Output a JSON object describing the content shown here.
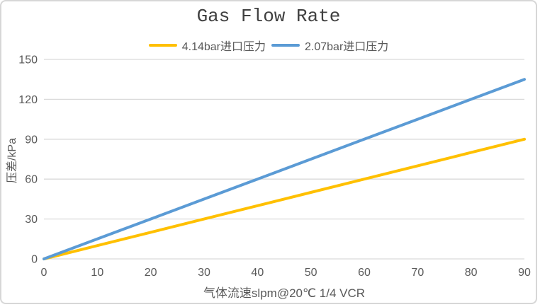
{
  "panel": {
    "background": "#FFFFFF",
    "border_color": "#D7D7D7"
  },
  "chart_data": {
    "type": "line",
    "title": "Gas Flow Rate",
    "xlabel": "气体流速slpm@20℃ 1/4 VCR",
    "ylabel": "压差/kPa",
    "x": [
      0,
      10,
      20,
      30,
      40,
      50,
      60,
      70,
      80,
      90
    ],
    "series": [
      {
        "name": "4.14bar进口压力",
        "color": "#FFC000",
        "values": [
          0,
          10,
          20,
          30,
          40,
          50,
          60,
          70,
          80,
          90
        ]
      },
      {
        "name": "2.07bar进口压力",
        "color": "#5B9BD5",
        "values": [
          0,
          15,
          30,
          45,
          60,
          75,
          90,
          105,
          120,
          135
        ]
      }
    ],
    "xlim": [
      0,
      90
    ],
    "ylim": [
      0,
      150
    ],
    "xticks": [
      0,
      10,
      20,
      30,
      40,
      50,
      60,
      70,
      80,
      90
    ],
    "yticks": [
      0,
      30,
      60,
      90,
      120,
      150
    ],
    "grid": "horizontal",
    "legend_position": "top",
    "gridline_color": "#D9D9D9",
    "text_color": "#595959",
    "title_color": "#404040",
    "line_width": 4
  }
}
